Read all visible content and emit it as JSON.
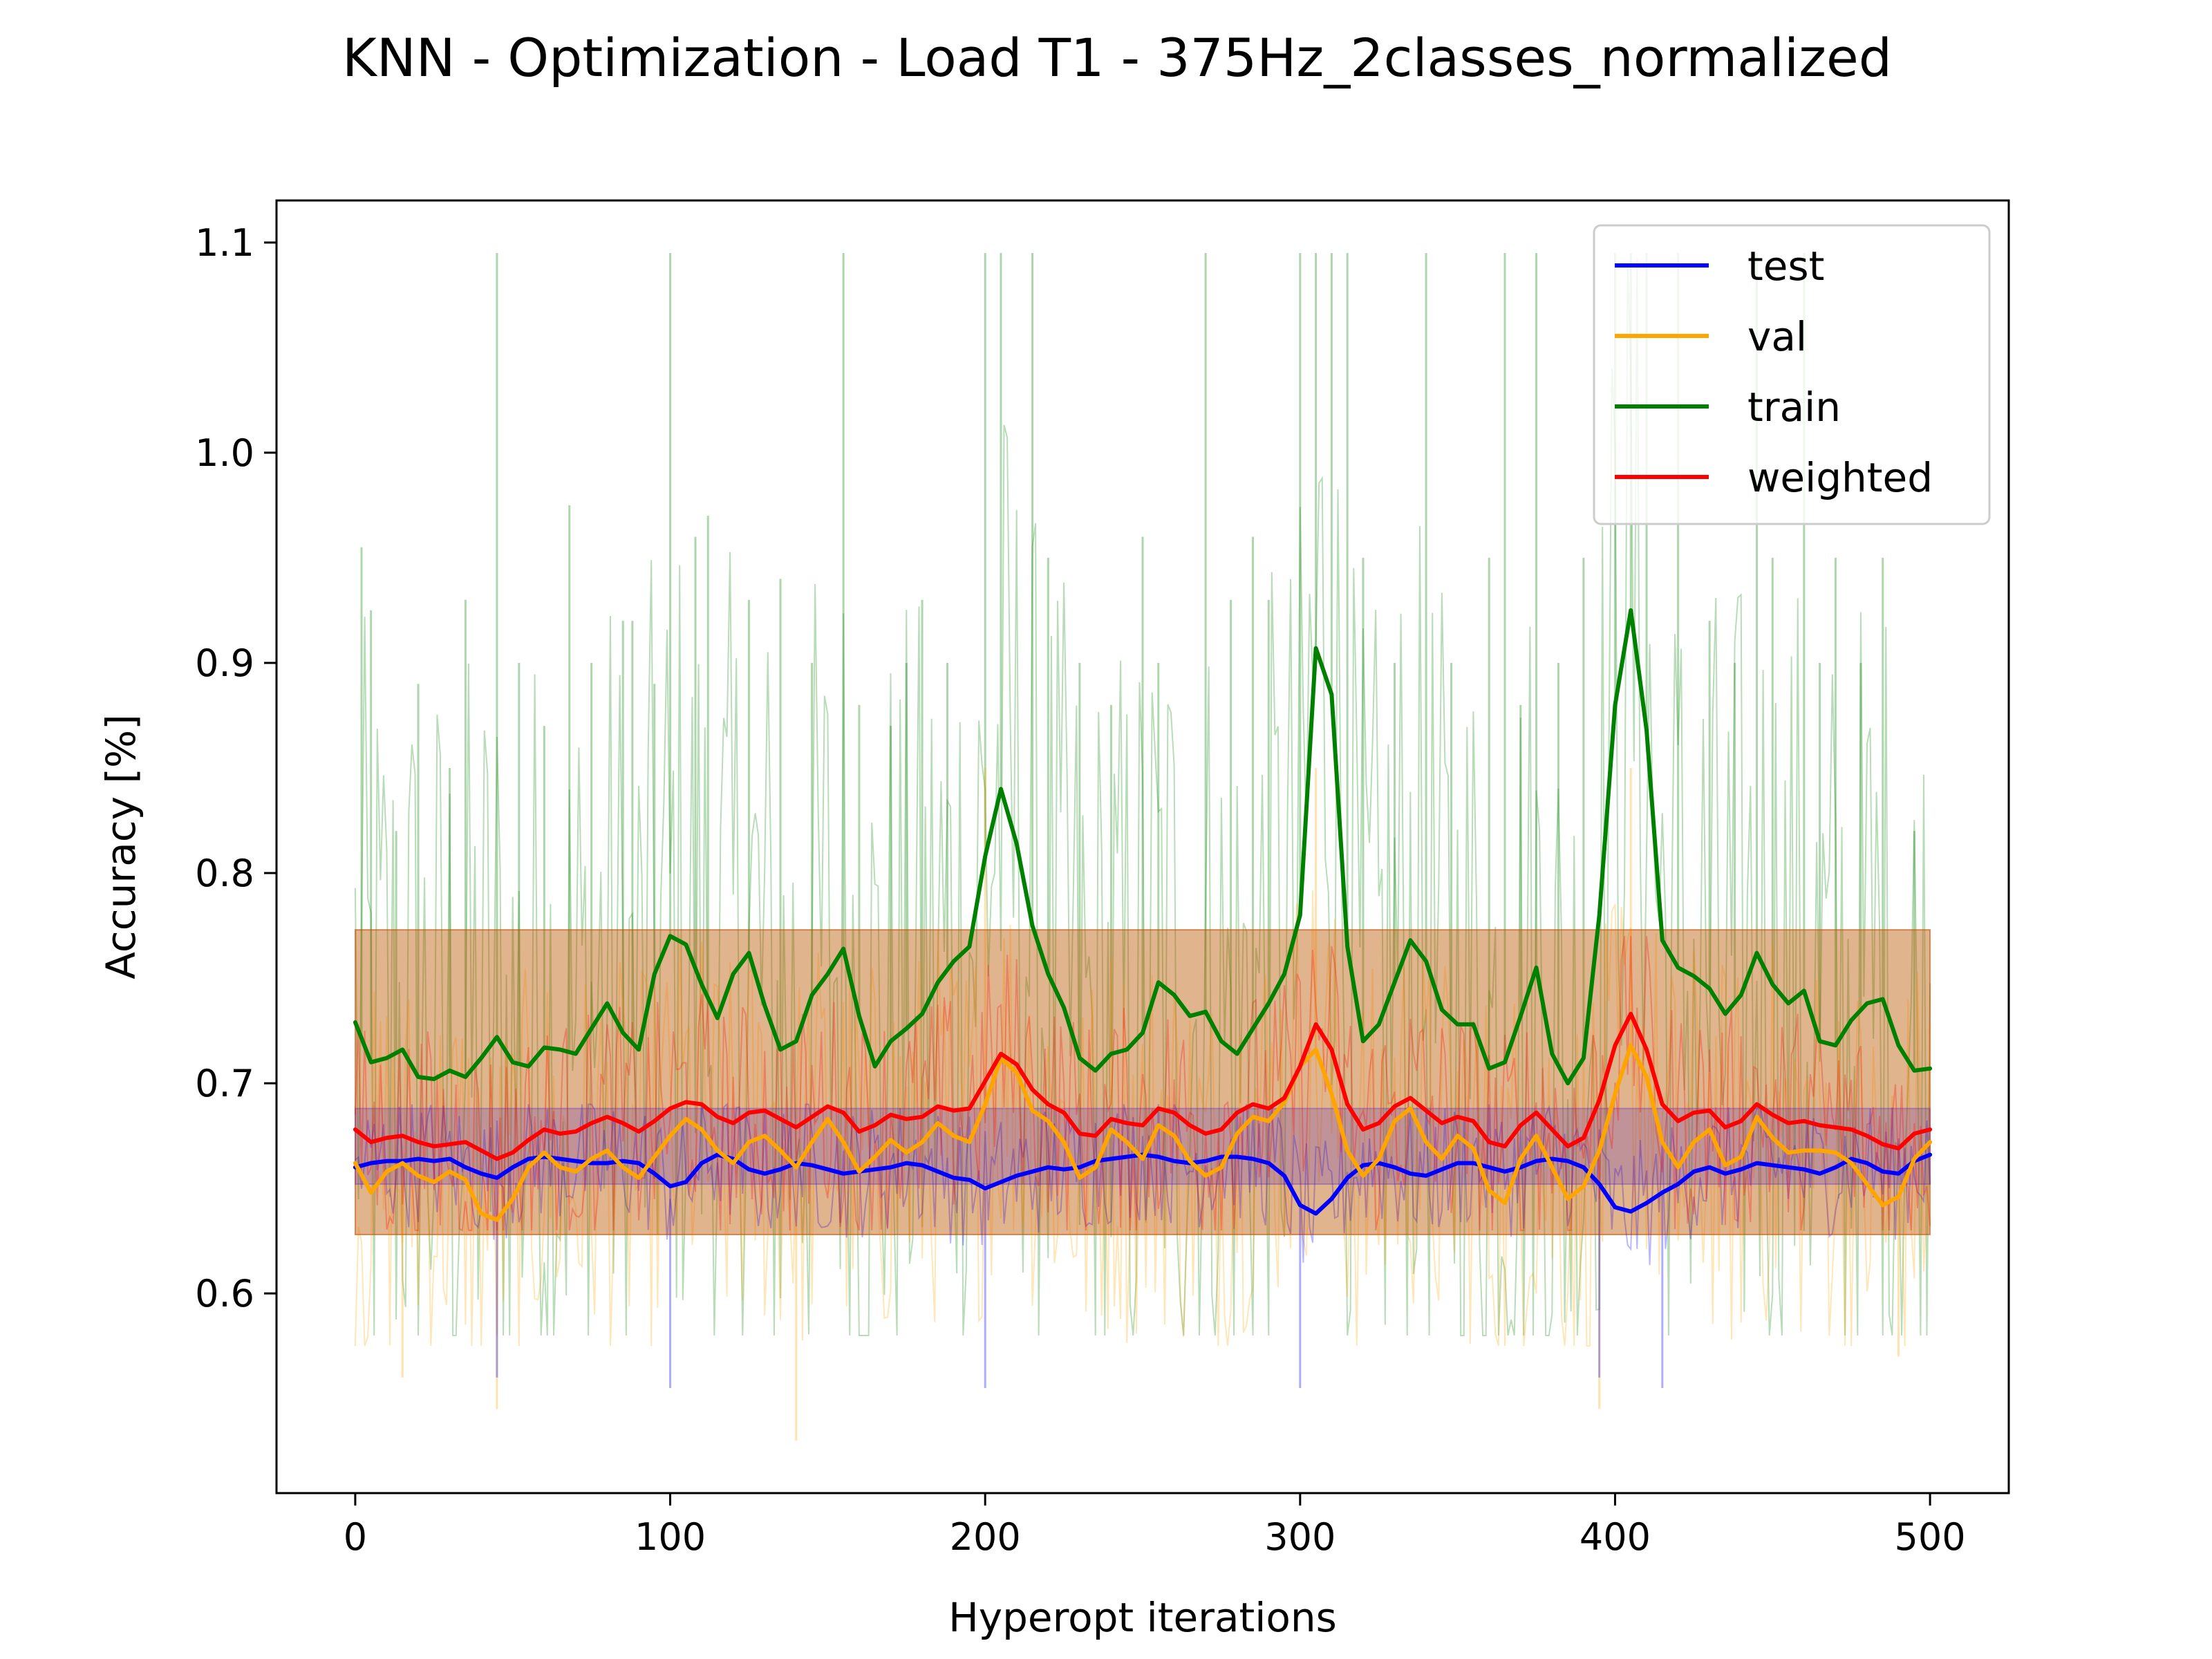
{
  "chart_data": {
    "type": "line",
    "title": "KNN - Optimization - Load T1 - 375Hz_2classes_normalized",
    "xlabel": "Hyperopt iterations",
    "ylabel": "Accuracy [%]",
    "xlim": [
      -25,
      525
    ],
    "ylim": [
      0.505,
      1.12
    ],
    "xticks": [
      0,
      100,
      200,
      300,
      400,
      500
    ],
    "yticks": [
      0.6,
      0.7,
      0.8,
      0.9,
      1.0,
      1.1
    ],
    "xtick_labels": [
      "0",
      "100",
      "200",
      "300",
      "400",
      "500"
    ],
    "ytick_labels": [
      "0.6",
      "0.7",
      "0.8",
      "0.9",
      "1.0",
      "1.1"
    ],
    "legend_position": "top-right",
    "smoothed_x": [
      0,
      5,
      10,
      15,
      20,
      25,
      30,
      35,
      40,
      45,
      50,
      55,
      60,
      65,
      70,
      75,
      80,
      85,
      90,
      95,
      100,
      105,
      110,
      115,
      120,
      125,
      130,
      135,
      140,
      145,
      150,
      155,
      160,
      165,
      170,
      175,
      180,
      185,
      190,
      195,
      200,
      205,
      210,
      215,
      220,
      225,
      230,
      235,
      240,
      245,
      250,
      255,
      260,
      265,
      270,
      275,
      280,
      285,
      290,
      295,
      300,
      305,
      310,
      315,
      320,
      325,
      330,
      335,
      340,
      345,
      350,
      355,
      360,
      365,
      370,
      375,
      380,
      385,
      390,
      395,
      400,
      405,
      410,
      415,
      420,
      425,
      430,
      435,
      440,
      445,
      450,
      455,
      460,
      465,
      470,
      475,
      480,
      485,
      490,
      495,
      500
    ],
    "series": [
      {
        "name": "test",
        "color": "#0000ff",
        "band": [
          0.652,
          0.688
        ],
        "raw_min": 0.61,
        "raw_max": 0.69,
        "spikes_down": [
          [
            45,
            0.56
          ],
          [
            100,
            0.555
          ],
          [
            200,
            0.555
          ],
          [
            300,
            0.555
          ],
          [
            395,
            0.56
          ],
          [
            415,
            0.555
          ]
        ],
        "spikes_up": [],
        "values": [
          0.66,
          0.662,
          0.663,
          0.663,
          0.664,
          0.663,
          0.664,
          0.66,
          0.657,
          0.655,
          0.66,
          0.664,
          0.665,
          0.664,
          0.663,
          0.662,
          0.662,
          0.663,
          0.662,
          0.657,
          0.651,
          0.653,
          0.662,
          0.666,
          0.664,
          0.659,
          0.657,
          0.659,
          0.662,
          0.661,
          0.659,
          0.657,
          0.658,
          0.659,
          0.66,
          0.662,
          0.661,
          0.658,
          0.655,
          0.654,
          0.65,
          0.653,
          0.656,
          0.658,
          0.66,
          0.659,
          0.66,
          0.663,
          0.664,
          0.665,
          0.666,
          0.665,
          0.663,
          0.662,
          0.663,
          0.665,
          0.665,
          0.664,
          0.662,
          0.656,
          0.642,
          0.638,
          0.645,
          0.655,
          0.661,
          0.662,
          0.66,
          0.657,
          0.656,
          0.659,
          0.662,
          0.662,
          0.66,
          0.658,
          0.66,
          0.663,
          0.664,
          0.663,
          0.66,
          0.652,
          0.641,
          0.639,
          0.643,
          0.648,
          0.652,
          0.658,
          0.66,
          0.657,
          0.659,
          0.662,
          0.661,
          0.66,
          0.659,
          0.657,
          0.66,
          0.664,
          0.662,
          0.658,
          0.657,
          0.663,
          0.666
        ]
      },
      {
        "name": "val",
        "color": "#ffa500",
        "band": [
          0.628,
          0.773
        ],
        "raw_min": 0.575,
        "raw_max": 0.82,
        "spikes_down": [
          [
            15,
            0.56
          ],
          [
            45,
            0.545
          ],
          [
            140,
            0.53
          ],
          [
            395,
            0.545
          ],
          [
            490,
            0.57
          ]
        ],
        "spikes_up": [
          [
            200,
            0.85
          ],
          [
            305,
            0.85
          ],
          [
            405,
            0.85
          ]
        ],
        "values": [
          0.662,
          0.648,
          0.658,
          0.662,
          0.656,
          0.653,
          0.658,
          0.654,
          0.638,
          0.635,
          0.645,
          0.66,
          0.667,
          0.66,
          0.658,
          0.664,
          0.668,
          0.66,
          0.655,
          0.665,
          0.675,
          0.683,
          0.678,
          0.668,
          0.662,
          0.672,
          0.675,
          0.668,
          0.66,
          0.672,
          0.683,
          0.672,
          0.658,
          0.665,
          0.673,
          0.667,
          0.672,
          0.681,
          0.675,
          0.672,
          0.69,
          0.712,
          0.705,
          0.687,
          0.682,
          0.672,
          0.655,
          0.66,
          0.678,
          0.672,
          0.664,
          0.68,
          0.675,
          0.663,
          0.656,
          0.66,
          0.676,
          0.684,
          0.682,
          0.691,
          0.708,
          0.716,
          0.695,
          0.668,
          0.656,
          0.664,
          0.682,
          0.688,
          0.672,
          0.664,
          0.675,
          0.669,
          0.649,
          0.643,
          0.664,
          0.675,
          0.66,
          0.645,
          0.651,
          0.668,
          0.695,
          0.718,
          0.703,
          0.672,
          0.66,
          0.672,
          0.678,
          0.661,
          0.665,
          0.684,
          0.674,
          0.667,
          0.668,
          0.668,
          0.667,
          0.662,
          0.652,
          0.642,
          0.646,
          0.664,
          0.672
        ]
      },
      {
        "name": "train",
        "color": "#008000",
        "band": [
          0.628,
          0.773
        ],
        "raw_min": 0.58,
        "raw_max": 1.095,
        "spikes_down": [],
        "spikes_up": [
          [
            2,
            0.955
          ],
          [
            5,
            0.925
          ],
          [
            13,
            0.82
          ],
          [
            20,
            0.89
          ],
          [
            30,
            0.85
          ],
          [
            35,
            0.93
          ],
          [
            45,
            1.095
          ],
          [
            52,
            0.9
          ],
          [
            60,
            0.87
          ],
          [
            68,
            0.975
          ],
          [
            75,
            0.9
          ],
          [
            85,
            0.92
          ],
          [
            88,
            0.92
          ],
          [
            95,
            0.89
          ],
          [
            100,
            1.095
          ],
          [
            108,
            0.96
          ],
          [
            112,
            0.97
          ],
          [
            125,
            0.93
          ],
          [
            135,
            0.94
          ],
          [
            145,
            0.9
          ],
          [
            155,
            1.095
          ],
          [
            160,
            0.88
          ],
          [
            170,
            0.87
          ],
          [
            175,
            0.9
          ],
          [
            180,
            0.93
          ],
          [
            188,
            0.9
          ],
          [
            200,
            1.095
          ],
          [
            205,
            1.095
          ],
          [
            215,
            1.095
          ],
          [
            220,
            0.95
          ],
          [
            230,
            0.9
          ],
          [
            240,
            0.88
          ],
          [
            250,
            0.96
          ],
          [
            255,
            0.9
          ],
          [
            270,
            1.095
          ],
          [
            278,
            0.93
          ],
          [
            285,
            0.96
          ],
          [
            290,
            0.93
          ],
          [
            300,
            1.095
          ],
          [
            305,
            1.095
          ],
          [
            310,
            1.095
          ],
          [
            315,
            1.095
          ],
          [
            320,
            0.95
          ],
          [
            330,
            0.9
          ],
          [
            340,
            1.095
          ],
          [
            348,
            0.9
          ],
          [
            360,
            0.95
          ],
          [
            365,
            1.095
          ],
          [
            370,
            0.88
          ],
          [
            375,
            1.095
          ],
          [
            382,
            0.9
          ],
          [
            390,
            0.95
          ],
          [
            400,
            1.095
          ],
          [
            405,
            1.095
          ],
          [
            410,
            1.095
          ],
          [
            420,
            1.095
          ],
          [
            430,
            0.92
          ],
          [
            438,
            0.9
          ],
          [
            445,
            1.095
          ],
          [
            450,
            0.95
          ],
          [
            460,
            1.095
          ],
          [
            465,
            0.9
          ],
          [
            470,
            0.95
          ],
          [
            478,
            0.9
          ],
          [
            485,
            0.95
          ],
          [
            495,
            0.82
          ]
        ],
        "values": [
          0.729,
          0.71,
          0.712,
          0.716,
          0.703,
          0.702,
          0.706,
          0.703,
          0.712,
          0.722,
          0.71,
          0.708,
          0.717,
          0.716,
          0.714,
          0.726,
          0.738,
          0.724,
          0.716,
          0.752,
          0.77,
          0.766,
          0.747,
          0.731,
          0.752,
          0.762,
          0.737,
          0.716,
          0.72,
          0.742,
          0.752,
          0.764,
          0.732,
          0.708,
          0.72,
          0.726,
          0.733,
          0.748,
          0.758,
          0.765,
          0.808,
          0.84,
          0.814,
          0.775,
          0.752,
          0.736,
          0.712,
          0.706,
          0.714,
          0.716,
          0.724,
          0.748,
          0.742,
          0.732,
          0.734,
          0.72,
          0.714,
          0.726,
          0.738,
          0.752,
          0.78,
          0.907,
          0.885,
          0.765,
          0.72,
          0.728,
          0.748,
          0.768,
          0.758,
          0.735,
          0.728,
          0.728,
          0.707,
          0.71,
          0.732,
          0.755,
          0.714,
          0.7,
          0.712,
          0.78,
          0.88,
          0.925,
          0.868,
          0.768,
          0.755,
          0.751,
          0.745,
          0.733,
          0.742,
          0.762,
          0.747,
          0.738,
          0.744,
          0.72,
          0.718,
          0.73,
          0.738,
          0.74,
          0.718,
          0.706,
          0.707
        ]
      },
      {
        "name": "weighted",
        "color": "#ff0000",
        "band": [
          0.628,
          0.773
        ],
        "raw_min": 0.63,
        "raw_max": 0.77,
        "spikes_down": [],
        "spikes_up": [],
        "values": [
          0.678,
          0.672,
          0.674,
          0.675,
          0.672,
          0.67,
          0.671,
          0.672,
          0.668,
          0.664,
          0.667,
          0.673,
          0.678,
          0.676,
          0.677,
          0.681,
          0.684,
          0.681,
          0.677,
          0.682,
          0.688,
          0.691,
          0.69,
          0.684,
          0.681,
          0.686,
          0.687,
          0.683,
          0.679,
          0.684,
          0.689,
          0.686,
          0.677,
          0.68,
          0.685,
          0.683,
          0.684,
          0.689,
          0.687,
          0.688,
          0.701,
          0.714,
          0.709,
          0.697,
          0.69,
          0.686,
          0.676,
          0.675,
          0.683,
          0.681,
          0.68,
          0.688,
          0.686,
          0.68,
          0.676,
          0.678,
          0.686,
          0.69,
          0.688,
          0.693,
          0.708,
          0.728,
          0.716,
          0.69,
          0.678,
          0.681,
          0.689,
          0.693,
          0.687,
          0.681,
          0.684,
          0.682,
          0.672,
          0.67,
          0.68,
          0.686,
          0.678,
          0.67,
          0.674,
          0.692,
          0.718,
          0.733,
          0.716,
          0.69,
          0.682,
          0.686,
          0.687,
          0.679,
          0.682,
          0.69,
          0.685,
          0.681,
          0.682,
          0.68,
          0.679,
          0.678,
          0.675,
          0.671,
          0.669,
          0.676,
          0.678
        ]
      }
    ]
  }
}
